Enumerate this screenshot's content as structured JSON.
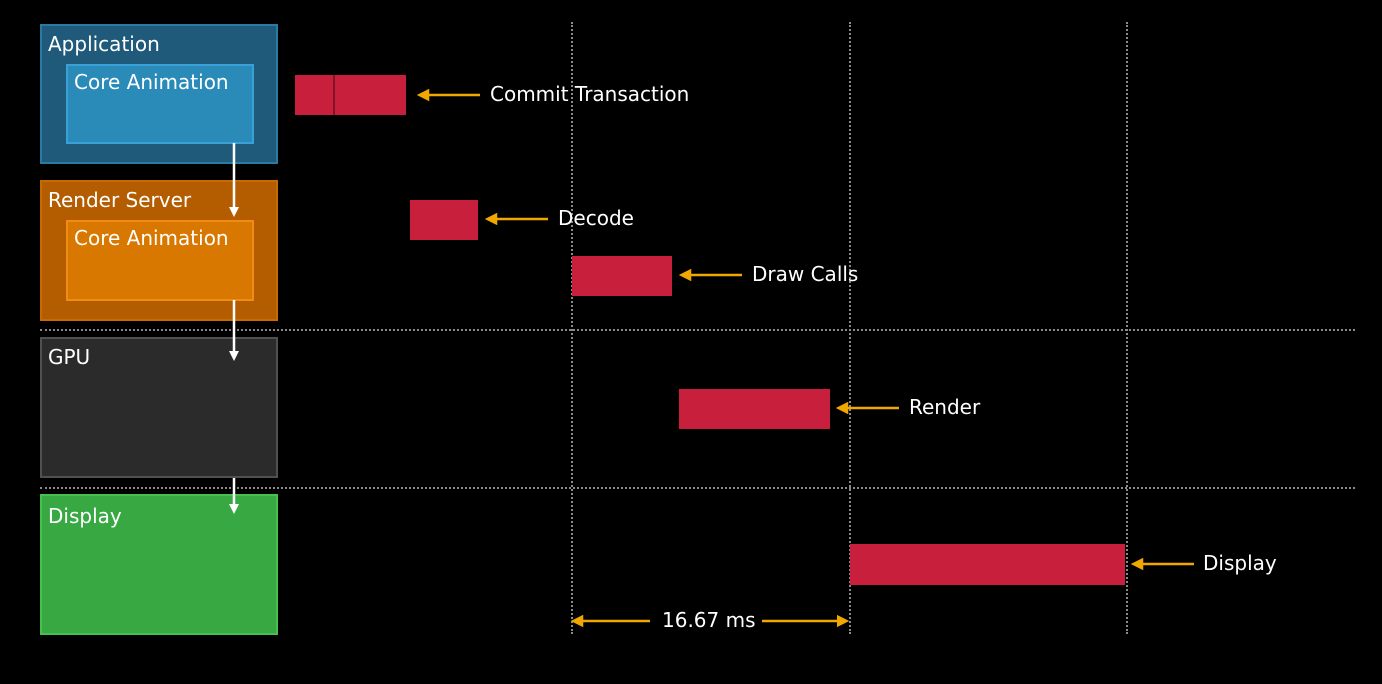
{
  "colors": {
    "background": "#000000",
    "event_bar": "#c8203c",
    "arrow": "#f0a800",
    "flow_arrow": "#ffffff",
    "grid": "#8a8a8a"
  },
  "lanes": {
    "application": {
      "label": "Application",
      "inner_label": "Core Animation",
      "outer_color": "#1f5a7a",
      "inner_color": "#2a8ab8"
    },
    "render_server": {
      "label": "Render Server",
      "inner_label": "Core Animation",
      "outer_color": "#b35c00",
      "inner_color": "#d87800"
    },
    "gpu": {
      "label": "GPU",
      "outer_color": "#2b2b2b"
    },
    "display": {
      "label": "Display",
      "outer_color": "#38a843"
    }
  },
  "events": {
    "commit": {
      "label": "Commit Transaction"
    },
    "decode": {
      "label": "Decode"
    },
    "draw_calls": {
      "label": "Draw Calls"
    },
    "render": {
      "label": "Render"
    },
    "display": {
      "label": "Display"
    }
  },
  "duration": {
    "label": "16.67 ms"
  }
}
